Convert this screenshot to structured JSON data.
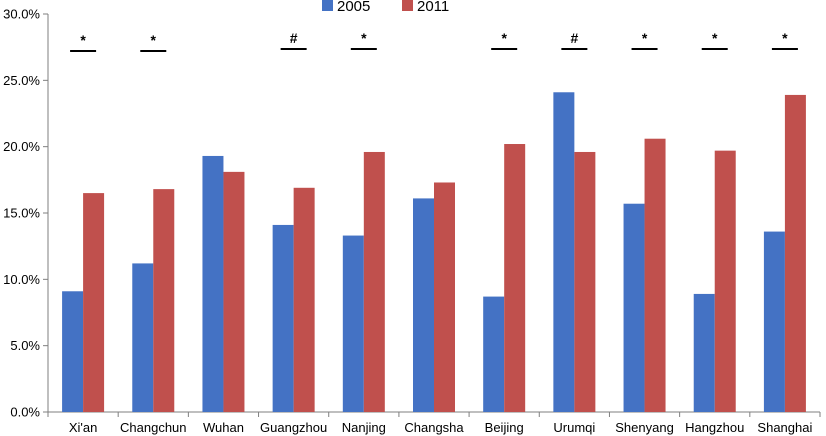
{
  "chart_data": {
    "type": "bar",
    "categories": [
      "Xi'an",
      "Changchun",
      "Wuhan",
      "Guangzhou",
      "Nanjing",
      "Changsha",
      "Beijing",
      "Urumqi",
      "Shenyang",
      "Hangzhou",
      "Shanghai"
    ],
    "series": [
      {
        "name": "2005",
        "color": "#4472c4",
        "values": [
          9.1,
          11.2,
          19.3,
          14.1,
          13.3,
          16.1,
          8.7,
          24.1,
          15.7,
          8.9,
          13.6
        ]
      },
      {
        "name": "2011",
        "color": "#c0504d",
        "values": [
          16.5,
          16.8,
          18.1,
          16.9,
          19.6,
          17.3,
          20.2,
          19.6,
          20.6,
          19.7,
          23.9
        ]
      }
    ],
    "significance_marks": [
      "*",
      "*",
      "",
      "#",
      "*",
      "",
      "*",
      "#",
      "*",
      "*",
      "*"
    ],
    "y_ticks": [
      "0.0%",
      "5.0%",
      "10.0%",
      "15.0%",
      "20.0%",
      "25.0%",
      "30.0%"
    ],
    "ylim": [
      0,
      30
    ],
    "y_tick_step": 5,
    "grid": false,
    "legend_position": "top-center",
    "title": "",
    "xlabel": "",
    "ylabel": ""
  }
}
